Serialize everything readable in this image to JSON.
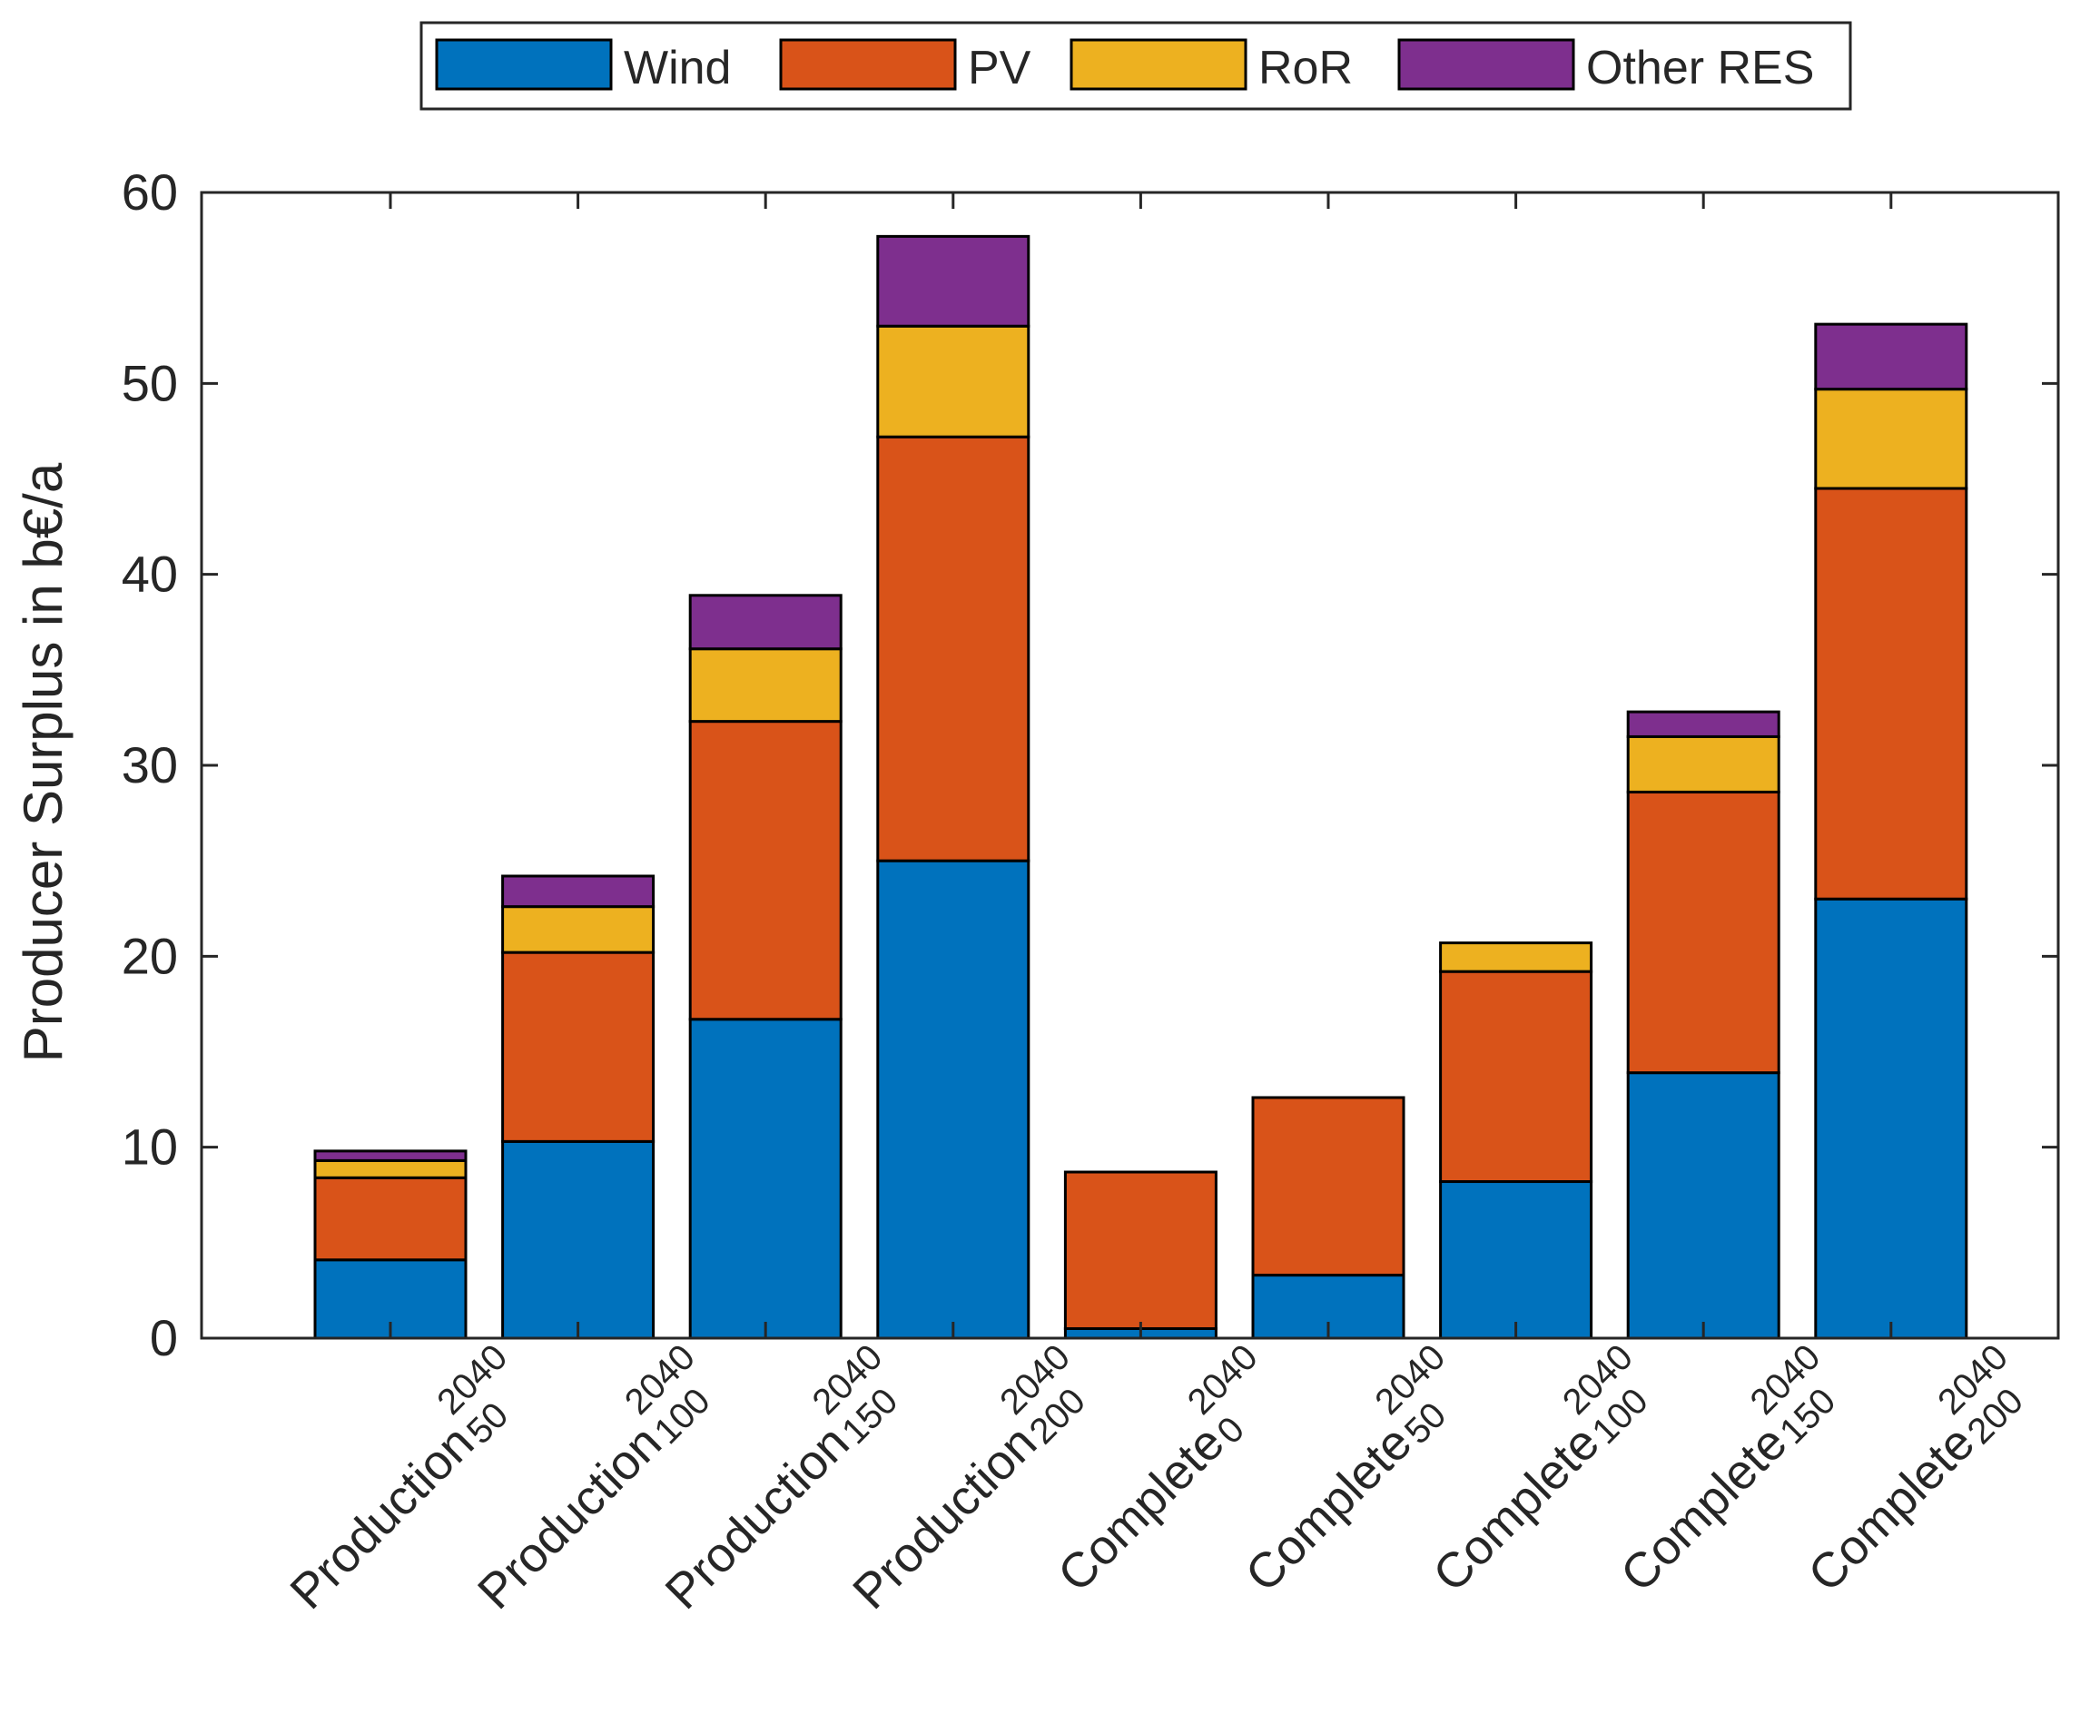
{
  "chart_data": {
    "type": "bar",
    "stacked": true,
    "categories": [
      {
        "base": "Production",
        "sup": "2040",
        "sub": "50"
      },
      {
        "base": "Production",
        "sup": "2040",
        "sub": "100"
      },
      {
        "base": "Production",
        "sup": "2040",
        "sub": "150"
      },
      {
        "base": "Production",
        "sup": "2040",
        "sub": "200"
      },
      {
        "base": "Complete",
        "sup": "2040",
        "sub": "0"
      },
      {
        "base": "Complete",
        "sup": "2040",
        "sub": "50"
      },
      {
        "base": "Complete",
        "sup": "2040",
        "sub": "100"
      },
      {
        "base": "Complete",
        "sup": "2040",
        "sub": "150"
      },
      {
        "base": "Complete",
        "sup": "2040",
        "sub": "200"
      }
    ],
    "series": [
      {
        "name": "Wind",
        "color": "#0072BD",
        "values": [
          4.1,
          10.3,
          16.7,
          25.0,
          0.5,
          3.3,
          8.2,
          13.9,
          23.0
        ]
      },
      {
        "name": "PV",
        "color": "#D95319",
        "values": [
          4.3,
          9.9,
          15.6,
          22.2,
          8.2,
          9.3,
          11.0,
          14.7,
          21.5
        ]
      },
      {
        "name": "RoR",
        "color": "#EDB120",
        "values": [
          0.9,
          2.4,
          3.8,
          5.8,
          0.0,
          0.0,
          1.5,
          2.9,
          5.2
        ]
      },
      {
        "name": "Other RES",
        "color": "#7E2F8E",
        "values": [
          0.5,
          1.6,
          2.8,
          4.7,
          0.0,
          0.0,
          0.0,
          1.3,
          3.4
        ]
      }
    ],
    "title": "",
    "xlabel": "",
    "ylabel": "Producer Surplus in b€/a",
    "ylim": [
      0,
      60
    ],
    "yticks": [
      "0",
      "10",
      "20",
      "30",
      "40",
      "50",
      "60"
    ],
    "grid": false,
    "legend_position": "top-outside-horizontal"
  }
}
